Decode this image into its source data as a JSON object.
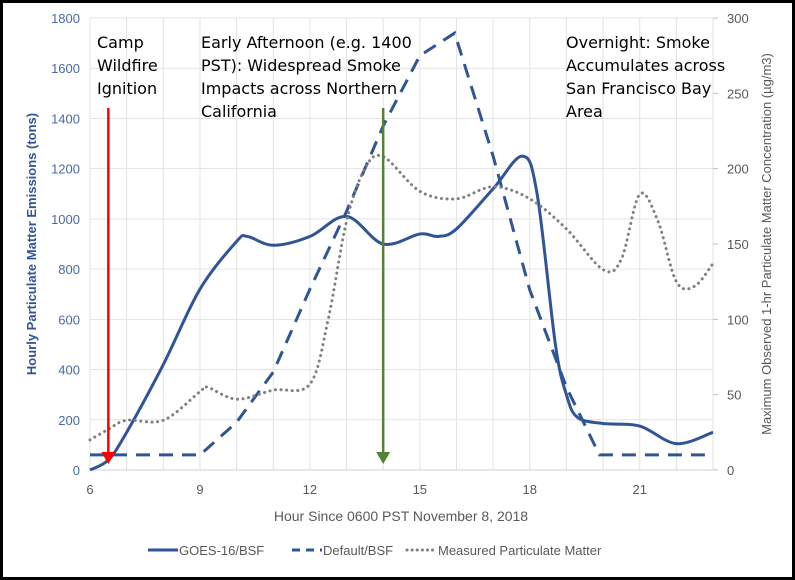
{
  "chart_data": {
    "type": "line",
    "title": "",
    "xlabel": "Hour Since 0600 PST November 8, 2018",
    "ylabel": "Hourly Particulate Matter Emissions (tons)",
    "y2label": "Maximum Observed 1-hr Particulate Matter Concentration (µg/m3)",
    "xlim": [
      6,
      23
    ],
    "ylim": [
      0,
      1800
    ],
    "y2lim": [
      0,
      300
    ],
    "xticks": [
      "6",
      "9",
      "12",
      "15",
      "18",
      "21"
    ],
    "yticks": [
      "0",
      "200",
      "400",
      "600",
      "800",
      "1000",
      "1200",
      "1400",
      "1600",
      "1800"
    ],
    "y2ticks": [
      "0",
      "50",
      "100",
      "150",
      "200",
      "250",
      "300"
    ],
    "grid": true,
    "legend_position": "bottom",
    "series": [
      {
        "name": "GOES-16/BSF",
        "axis": "left",
        "style": "solid",
        "color": "#2f5597",
        "x": [
          6,
          6.5,
          7,
          8,
          9,
          10,
          10.3,
          11,
          12,
          13,
          14,
          15,
          15.5,
          16,
          17,
          17.8,
          18.2,
          18.7,
          19,
          19.3,
          20,
          21,
          22,
          23
        ],
        "values": [
          0,
          40,
          150,
          420,
          720,
          910,
          930,
          895,
          930,
          1010,
          900,
          940,
          930,
          960,
          1120,
          1250,
          1100,
          500,
          300,
          210,
          185,
          175,
          105,
          150
        ]
      },
      {
        "name": "Default/BSF",
        "axis": "left",
        "style": "dashed",
        "color": "#2f5597",
        "x": [
          6,
          9,
          10,
          11,
          12,
          13,
          14,
          15,
          15.95,
          17,
          18,
          19,
          19.9,
          20,
          23
        ],
        "values": [
          60,
          60,
          190,
          390,
          720,
          1030,
          1370,
          1650,
          1740,
          1250,
          717,
          330,
          60,
          60,
          60
        ]
      },
      {
        "name": "Measured Particulate Matter",
        "axis": "right",
        "style": "dotted",
        "color": "#7f7f7f",
        "x": [
          6,
          6.5,
          7,
          8,
          9,
          9.2,
          10,
          11,
          12,
          12.5,
          13,
          13.5,
          14,
          15,
          16,
          17,
          18,
          19,
          20,
          20.5,
          21,
          21.5,
          22,
          22.5,
          23
        ],
        "values": [
          20,
          27,
          33,
          33,
          52,
          55,
          47,
          53,
          57,
          100,
          165,
          200,
          208,
          185,
          180,
          188,
          180,
          160,
          133,
          140,
          183,
          165,
          125,
          122,
          137
        ]
      }
    ],
    "annotations": [
      {
        "text": [
          "Camp",
          "Wildfire",
          "Ignition"
        ],
        "arrow_x": 6.5,
        "arrow_color": "#ff0000"
      },
      {
        "text": [
          "Early Afternoon (e.g. 1400",
          "PST):  Widespread Smoke",
          "Impacts across Northern",
          "California"
        ],
        "arrow_x": 14,
        "arrow_color": "#548235"
      },
      {
        "text": [
          "Overnight: Smoke",
          "Accumulates across",
          "San Francisco Bay",
          "Area"
        ]
      }
    ]
  }
}
